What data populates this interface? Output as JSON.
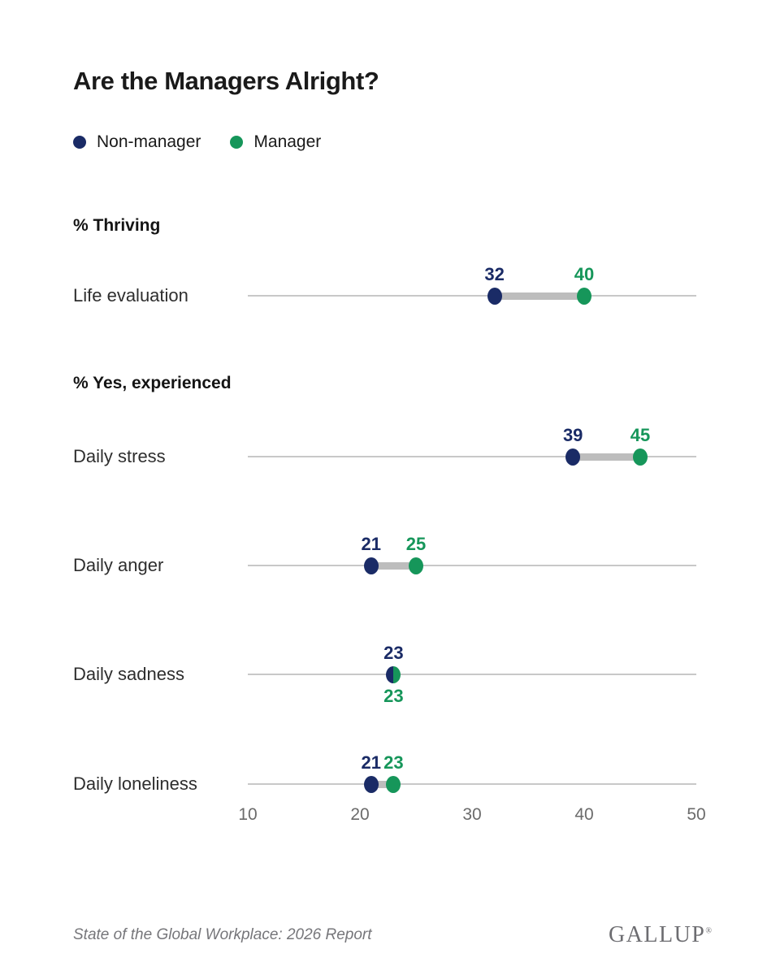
{
  "title": "Are the Managers Alright?",
  "legend": {
    "items": [
      {
        "label": "Non-manager",
        "color": "#1A2B66"
      },
      {
        "label": "Manager",
        "color": "#16965A"
      }
    ]
  },
  "colors": {
    "non_manager": "#1A2B66",
    "manager": "#16965A",
    "axis_line": "#C8C8C8",
    "connector": "#BDBDBD",
    "axis_text": "#6B6B6B"
  },
  "chart_data": {
    "type": "dumbbell",
    "title": "Are the Managers Alright?",
    "series_names": [
      "Non-manager",
      "Manager"
    ],
    "series_colors": [
      "#1A2B66",
      "#16965A"
    ],
    "axis": {
      "min": 10,
      "max": 50,
      "ticks": [
        10,
        20,
        30,
        40,
        50
      ]
    },
    "legend_position": "top-left",
    "grid": false,
    "sections": [
      {
        "header": "% Thriving",
        "rows": [
          {
            "label": "Life evaluation",
            "non_manager": 32,
            "manager": 40
          }
        ]
      },
      {
        "header": "% Yes, experienced",
        "rows": [
          {
            "label": "Daily stress",
            "non_manager": 39,
            "manager": 45
          },
          {
            "label": "Daily anger",
            "non_manager": 21,
            "manager": 25
          },
          {
            "label": "Daily sadness",
            "non_manager": 23,
            "manager": 23
          },
          {
            "label": "Daily loneliness",
            "non_manager": 21,
            "manager": 23
          }
        ]
      }
    ]
  },
  "footer": {
    "source": "State of the Global Workplace: 2026 Report",
    "brand": "GALLUP",
    "registered": "®"
  }
}
